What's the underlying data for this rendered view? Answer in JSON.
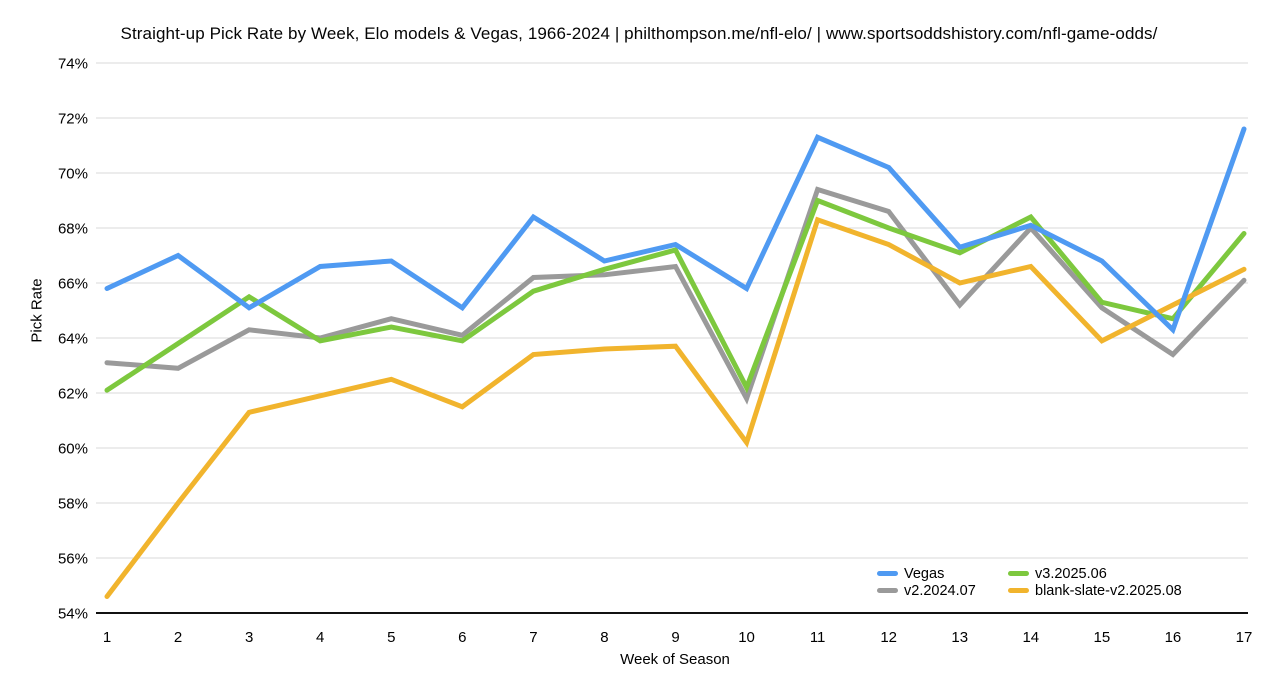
{
  "title": "Straight-up Pick Rate by Week, Elo models & Vegas, 1966-2024 | philthompson.me/nfl-elo/ | www.sportsoddshistory.com/nfl-game-odds/",
  "axes": {
    "y_title": "Pick Rate",
    "x_title": "Week of Season",
    "y_tick_labels": [
      "74%",
      "72%",
      "70%",
      "68%",
      "66%",
      "64%",
      "62%",
      "60%",
      "58%",
      "56%",
      "54%"
    ],
    "x_tick_labels": [
      "1",
      "2",
      "3",
      "4",
      "5",
      "6",
      "7",
      "8",
      "9",
      "10",
      "11",
      "12",
      "13",
      "14",
      "15",
      "16",
      "17"
    ]
  },
  "colors": {
    "vegas_blue": "#4f9af2",
    "v2_gray": "#9a9a9a",
    "v3_green": "#7dc83e",
    "blank_slate_amber": "#f1b42d",
    "gridline": "#dadada",
    "axis_line": "#111111"
  },
  "legend": {
    "items": [
      {
        "label": "Vegas",
        "color": "#4f9af2"
      },
      {
        "label": "v3.2025.06",
        "color": "#7dc83e"
      },
      {
        "label": "v2.2024.07",
        "color": "#9a9a9a"
      },
      {
        "label": "blank-slate-v2.2025.08",
        "color": "#f1b42d"
      }
    ]
  },
  "chart_data": {
    "type": "line",
    "title": "Straight-up Pick Rate by Week, Elo models & Vegas, 1966-2024 | philthompson.me/nfl-elo/ | www.sportsoddshistory.com/nfl-game-odds/",
    "xlabel": "Week of Season",
    "ylabel": "Pick Rate",
    "x": [
      1,
      2,
      3,
      4,
      5,
      6,
      7,
      8,
      9,
      10,
      11,
      12,
      13,
      14,
      15,
      16,
      17
    ],
    "ylim": [
      54,
      74
    ],
    "ytick_step": 2,
    "grid": "horizontal",
    "legend_position": "bottom-right",
    "series": [
      {
        "name": "Vegas",
        "color": "#4f9af2",
        "values": [
          65.8,
          67.0,
          65.1,
          66.6,
          66.8,
          65.1,
          68.4,
          66.8,
          67.4,
          65.8,
          71.3,
          70.2,
          67.3,
          68.1,
          66.8,
          64.3,
          71.6
        ]
      },
      {
        "name": "v2.2024.07",
        "color": "#9a9a9a",
        "values": [
          63.1,
          62.9,
          64.3,
          64.0,
          64.7,
          64.1,
          66.2,
          66.3,
          66.6,
          61.8,
          69.4,
          68.6,
          65.2,
          68.0,
          65.1,
          63.4,
          66.1
        ]
      },
      {
        "name": "v3.2025.06",
        "color": "#7dc83e",
        "values": [
          62.1,
          63.8,
          65.5,
          63.9,
          64.4,
          63.9,
          65.7,
          66.5,
          67.2,
          62.2,
          69.0,
          68.0,
          67.1,
          68.4,
          65.3,
          64.7,
          67.8
        ]
      },
      {
        "name": "blank-slate-v2.2025.08",
        "color": "#f1b42d",
        "values": [
          54.6,
          58.0,
          61.3,
          61.9,
          62.5,
          61.5,
          63.4,
          63.6,
          63.7,
          60.2,
          68.3,
          67.4,
          66.0,
          66.6,
          63.9,
          65.2,
          66.5
        ]
      }
    ],
    "draw_order": [
      "v2.2024.07",
      "v3.2025.06",
      "blank-slate-v2.2025.08",
      "Vegas"
    ]
  }
}
